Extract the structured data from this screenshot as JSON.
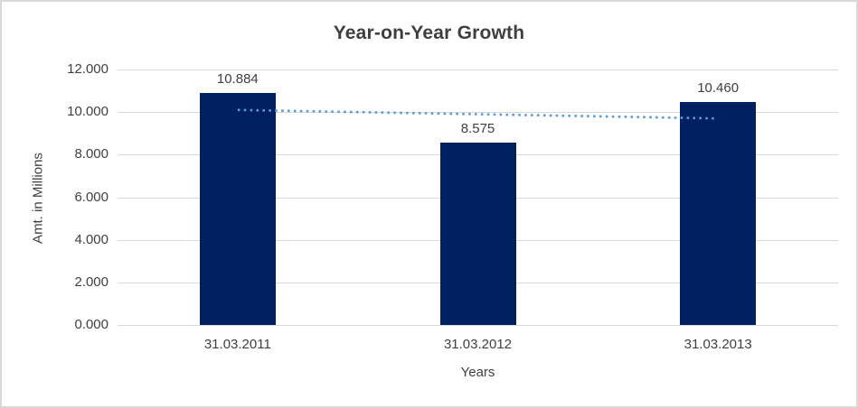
{
  "window": {
    "background_color": "#FFFFFF",
    "border_color": "#D9D9D9"
  },
  "chart_data": {
    "type": "bar",
    "title": "Year-on-Year Growth",
    "categories": [
      "31.03.2011",
      "31.03.2012",
      "31.03.2013"
    ],
    "values": [
      10.884,
      8.575,
      10.46
    ],
    "value_labels": [
      "10.884",
      "8.575",
      "10.460"
    ],
    "xlabel": "Years",
    "ylabel": "Amt. in Millions",
    "ylim": [
      0,
      12
    ],
    "ytick_step": 2,
    "ytick_labels": [
      "0.000",
      "2.000",
      "4.000",
      "6.000",
      "8.000",
      "10.000",
      "12.000"
    ],
    "grid": true,
    "legend": false,
    "bar_color": "#002060",
    "gridline_color": "#D9D9D9",
    "text_color": "#404040",
    "title_color": "#3F3F3F",
    "trendline": {
      "style": "dotted",
      "color": "#5B9BD5",
      "start_value": 10.1,
      "end_value": 9.7,
      "start_category_index": 0,
      "end_category_index": 2
    }
  }
}
